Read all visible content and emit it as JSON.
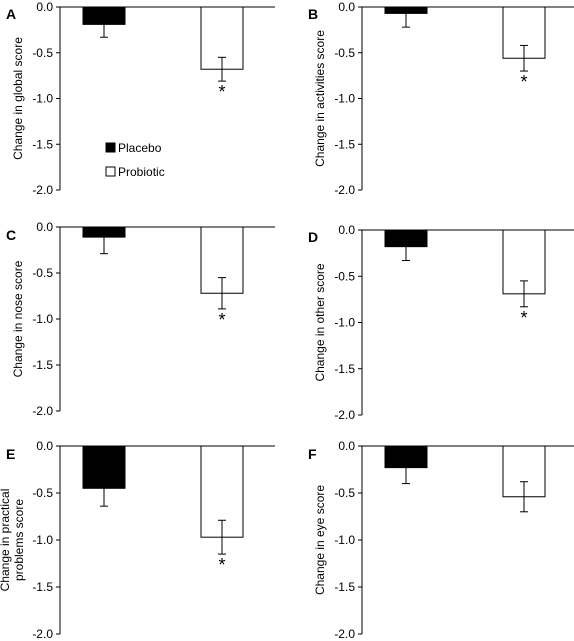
{
  "legend": {
    "placebo_label": "Placebo",
    "probiotic_label": "Probiotic"
  },
  "colors": {
    "placebo": "#000000",
    "probiotic": "#ffffff",
    "outline": "#000000"
  },
  "chart_data": [
    {
      "type": "bar",
      "panel": "A",
      "ylabel": "Change in global score",
      "ylim": [
        -2.0,
        0.0
      ],
      "yticks": [
        "0.0",
        "-0.5",
        "-1.0",
        "-1.5",
        "-2.0"
      ],
      "series": [
        {
          "name": "Placebo",
          "value": -0.19,
          "error": 0.14,
          "significant": false
        },
        {
          "name": "Probiotic",
          "value": -0.68,
          "error": 0.13,
          "significant": true
        }
      ]
    },
    {
      "type": "bar",
      "panel": "B",
      "ylabel": "Change in activities score",
      "ylim": [
        -2.0,
        0.0
      ],
      "yticks": [
        "0.0",
        "-0.5",
        "-1.0",
        "-1.5",
        "-2.0"
      ],
      "series": [
        {
          "name": "Placebo",
          "value": -0.07,
          "error": 0.15,
          "significant": false
        },
        {
          "name": "Probiotic",
          "value": -0.56,
          "error": 0.14,
          "significant": true
        }
      ]
    },
    {
      "type": "bar",
      "panel": "C",
      "ylabel": "Change in nose score",
      "ylim": [
        -2.0,
        0.0
      ],
      "yticks": [
        "0.0",
        "-0.5",
        "-1.0",
        "-1.5",
        "-2.0"
      ],
      "series": [
        {
          "name": "Placebo",
          "value": -0.11,
          "error": 0.18,
          "significant": false
        },
        {
          "name": "Probiotic",
          "value": -0.72,
          "error": 0.17,
          "significant": true
        }
      ]
    },
    {
      "type": "bar",
      "panel": "D",
      "ylabel": "Change in other score",
      "ylim": [
        -2.0,
        0.0
      ],
      "yticks": [
        "0.0",
        "-0.5",
        "-1.0",
        "-1.5",
        "-2.0"
      ],
      "series": [
        {
          "name": "Placebo",
          "value": -0.18,
          "error": 0.15,
          "significant": false
        },
        {
          "name": "Probiotic",
          "value": -0.69,
          "error": 0.14,
          "significant": true
        }
      ]
    },
    {
      "type": "bar",
      "panel": "E",
      "ylabel": "Change in practical problems score",
      "ylabel_lines": [
        "Change in practical",
        "problems score"
      ],
      "ylim": [
        -2.0,
        0.0
      ],
      "yticks": [
        "0.0",
        "-0.5",
        "-1.0",
        "-1.5",
        "-2.0"
      ],
      "series": [
        {
          "name": "Placebo",
          "value": -0.45,
          "error": 0.19,
          "significant": false
        },
        {
          "name": "Probiotic",
          "value": -0.97,
          "error": 0.18,
          "significant": true
        }
      ]
    },
    {
      "type": "bar",
      "panel": "F",
      "ylabel": "Change in eye score",
      "ylim": [
        -2.0,
        0.0
      ],
      "yticks": [
        "0.0",
        "-0.5",
        "-1.0",
        "-1.5",
        "-2.0"
      ],
      "series": [
        {
          "name": "Placebo",
          "value": -0.23,
          "error": 0.17,
          "significant": false
        },
        {
          "name": "Probiotic",
          "value": -0.54,
          "error": 0.16,
          "significant": false
        }
      ]
    }
  ],
  "significance_marker": "*"
}
